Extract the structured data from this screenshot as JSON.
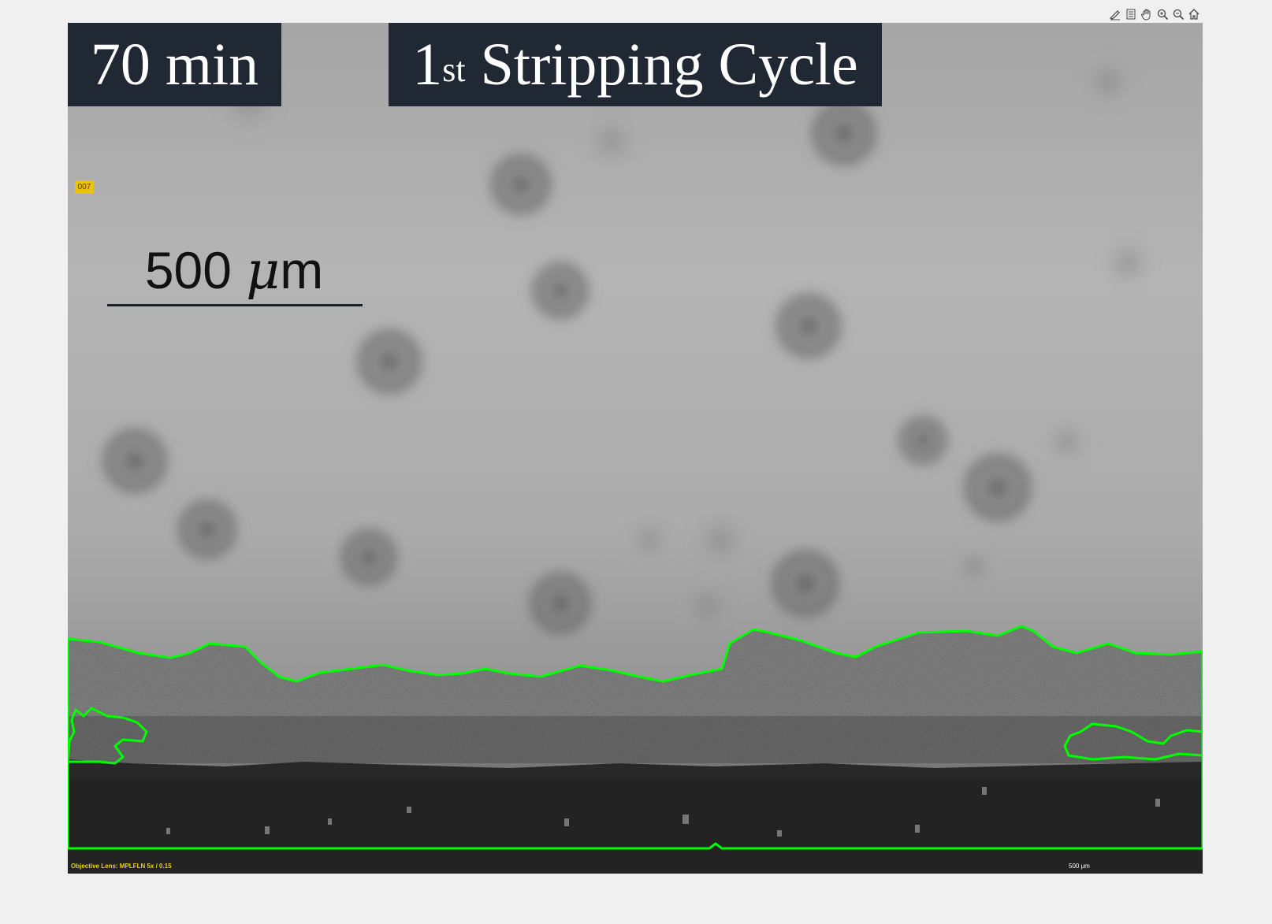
{
  "toolbar": {
    "items": [
      {
        "icon": "edit-plot-icon"
      },
      {
        "icon": "data-cursor-icon"
      },
      {
        "icon": "pan-hand-icon"
      },
      {
        "icon": "zoom-in-icon"
      },
      {
        "icon": "zoom-out-icon"
      },
      {
        "icon": "home-icon"
      }
    ]
  },
  "image": {
    "time_label": "70 min",
    "cycle_label_ordinal": "1",
    "cycle_label_suffix": "st",
    "cycle_label_text": "Stripping Cycle",
    "frame_tag": "007",
    "scale_value": "500",
    "scale_unit_mu": "μ",
    "scale_unit_m": "m",
    "lens_info": "Objective Lens:   MPLFLN 5x / 0.15",
    "mini_scale_label": "500 μm"
  },
  "colors": {
    "label_background": "#202833",
    "outline": "#00ff00",
    "frame_tag_background": "#e6c50f"
  }
}
